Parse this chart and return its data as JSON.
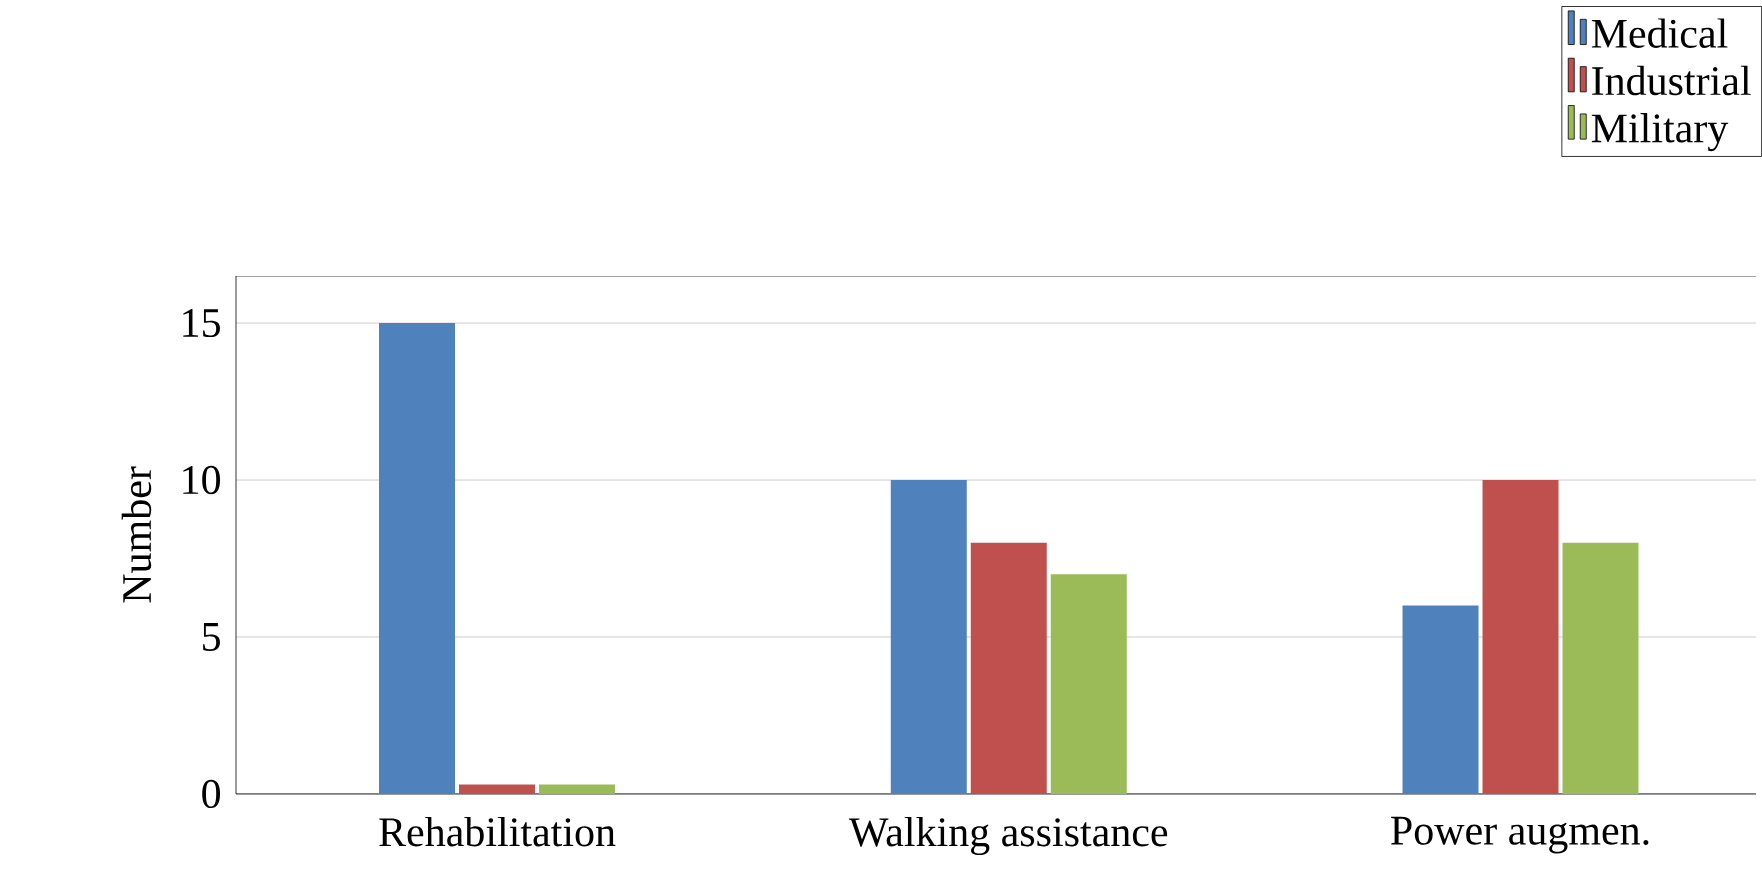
{
  "chart_data": {
    "type": "bar",
    "ylabel": "Number",
    "categories": [
      "Rehabilitation",
      "Walking assistance",
      "Power augmen."
    ],
    "series": [
      {
        "name": "Medical",
        "color": "#4f81bd",
        "values": [
          15,
          10,
          6
        ]
      },
      {
        "name": "Industrial",
        "color": "#c0504d",
        "values": [
          0.3,
          8,
          10
        ]
      },
      {
        "name": "Military",
        "color": "#9bbb59",
        "values": [
          0.3,
          7,
          8
        ]
      }
    ],
    "ylim": [
      0,
      16.5
    ],
    "yticks": [
      0,
      5,
      10,
      15
    ],
    "grid": "y",
    "legend": "top right"
  }
}
